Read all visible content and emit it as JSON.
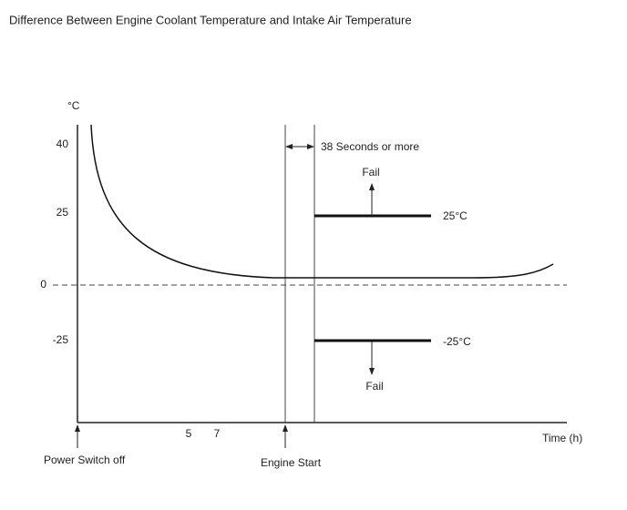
{
  "title": "Difference Between Engine Coolant Temperature and Intake Air Temperature",
  "y_axis": {
    "unit": "°C",
    "ticks": [
      "40",
      "25",
      "0",
      "-25"
    ]
  },
  "x_axis": {
    "label": "Time (h)",
    "ticks": [
      "5",
      "7"
    ]
  },
  "annotations": {
    "duration": "38 Seconds or more",
    "upper_fail": "Fail",
    "upper_threshold": "25°C",
    "lower_threshold": "-25°C",
    "lower_fail": "Fail",
    "power_switch_off": "Power Switch off",
    "engine_start": "Engine Start"
  }
}
